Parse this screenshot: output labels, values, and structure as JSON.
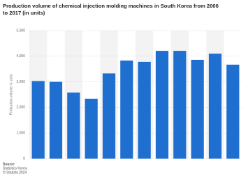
{
  "chart_data": {
    "type": "bar",
    "title": [
      "Production volume of chemical injection molding machines in South Korea from 2006",
      "to 2017 (in units)"
    ],
    "y_label": "Production volume in units",
    "values": [
      3030,
      3000,
      2580,
      2340,
      3330,
      3830,
      3780,
      4210,
      4210,
      3860,
      4100,
      3670
    ],
    "color": "#1f6fd1",
    "ylim": [
      0,
      5000
    ],
    "yticks": [
      0,
      {
        "value": 1000,
        "label": "1,000"
      },
      {
        "value": 2000,
        "label": "2,000"
      },
      {
        "value": 3000,
        "label": "3,000"
      },
      {
        "value": 4000,
        "label": "4,000"
      },
      {
        "value": 5000,
        "label": "5,000"
      }
    ],
    "grid": true,
    "source": [
      "Source",
      "Statistics Korea",
      "© Statista 2024"
    ]
  }
}
